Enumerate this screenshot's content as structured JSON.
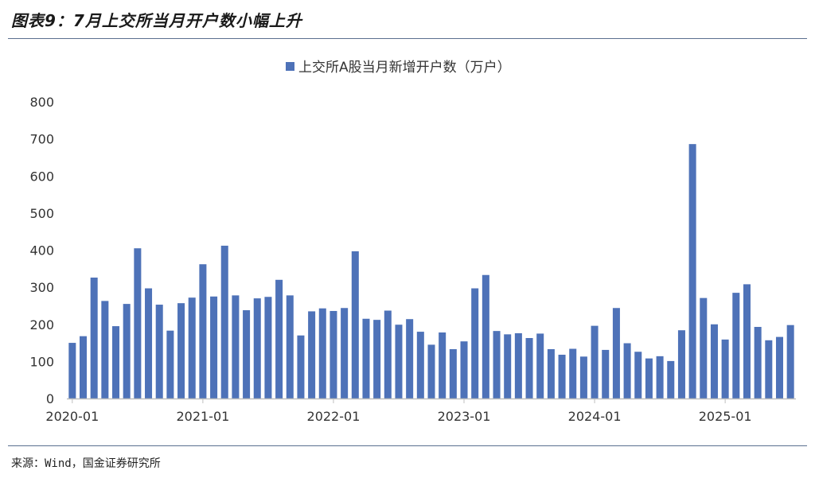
{
  "figure_title": "图表9：7月上交所当月开户数小幅上升",
  "source_note": "来源：Wind，国金证券研究所",
  "colors": {
    "bar": "#4e72b8",
    "axis": "#bfbfbf",
    "rule": "#5a6f8f"
  },
  "chart_data": {
    "type": "bar",
    "legend": "上交所A股当月新增开户数（万户）",
    "legend_position": "top-center",
    "grid": false,
    "ylim": [
      0,
      800
    ],
    "yticks": [
      0,
      100,
      200,
      300,
      400,
      500,
      600,
      700,
      800
    ],
    "xtick_labels": [
      "2020-01",
      "2021-01",
      "2022-01",
      "2023-01",
      "2024-01",
      "2025-01"
    ],
    "categories": [
      "2020-01",
      "2020-02",
      "2020-03",
      "2020-04",
      "2020-05",
      "2020-06",
      "2020-07",
      "2020-08",
      "2020-09",
      "2020-10",
      "2020-11",
      "2020-12",
      "2021-01",
      "2021-02",
      "2021-03",
      "2021-04",
      "2021-05",
      "2021-06",
      "2021-07",
      "2021-08",
      "2021-09",
      "2021-10",
      "2021-11",
      "2021-12",
      "2022-01",
      "2022-02",
      "2022-03",
      "2022-04",
      "2022-05",
      "2022-06",
      "2022-07",
      "2022-08",
      "2022-09",
      "2022-10",
      "2022-11",
      "2022-12",
      "2023-01",
      "2023-02",
      "2023-03",
      "2023-04",
      "2023-05",
      "2023-06",
      "2023-07",
      "2023-08",
      "2023-09",
      "2023-10",
      "2023-11",
      "2023-12",
      "2024-01",
      "2024-02",
      "2024-03",
      "2024-04",
      "2024-05",
      "2024-06",
      "2024-07",
      "2024-08",
      "2024-09",
      "2024-10",
      "2024-11",
      "2024-12",
      "2025-01",
      "2025-02",
      "2025-03",
      "2025-04",
      "2025-05",
      "2025-06",
      "2025-07"
    ],
    "values": [
      150,
      168,
      326,
      263,
      195,
      255,
      405,
      297,
      253,
      183,
      257,
      272,
      362,
      275,
      412,
      278,
      238,
      270,
      274,
      320,
      278,
      170,
      235,
      243,
      236,
      244,
      397,
      215,
      212,
      237,
      199,
      214,
      180,
      145,
      178,
      133,
      154,
      297,
      333,
      182,
      173,
      176,
      163,
      175,
      133,
      118,
      134,
      113,
      196,
      131,
      244,
      149,
      126,
      108,
      114,
      101,
      184,
      686,
      271,
      200,
      159,
      285,
      308,
      193,
      157,
      166,
      198
    ]
  }
}
